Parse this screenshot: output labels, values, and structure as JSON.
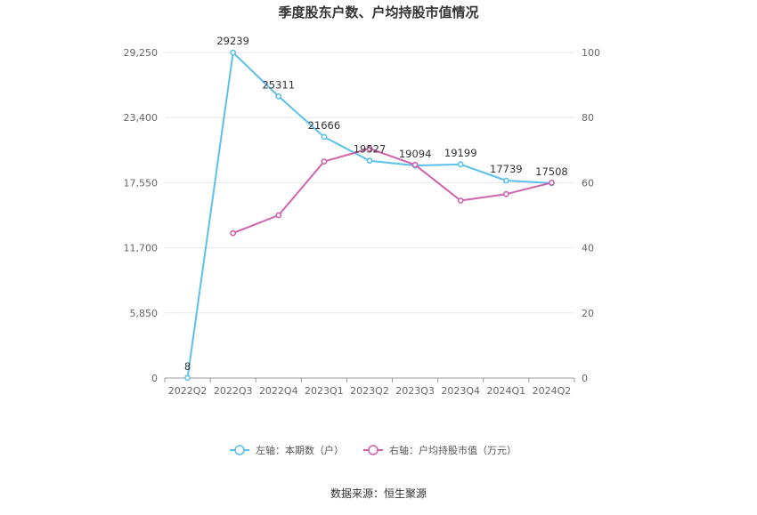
{
  "source_text": "数据来源：恒生聚源",
  "chart_data": {
    "type": "line",
    "title": "季度股东户数、户均持股市值情况",
    "categories": [
      "2022Q2",
      "2022Q3",
      "2022Q4",
      "2023Q1",
      "2023Q2",
      "2023Q3",
      "2023Q4",
      "2024Q1",
      "2024Q2"
    ],
    "y_left": {
      "ticks": [
        0,
        5850,
        11700,
        17550,
        23400,
        29250
      ],
      "tick_labels": [
        "0",
        "5,850",
        "11,700",
        "17,550",
        "23,400",
        "29,250"
      ],
      "ylim": [
        0,
        29250
      ]
    },
    "y_right": {
      "ticks": [
        0,
        20,
        40,
        60,
        80,
        100
      ],
      "tick_labels": [
        "0",
        "20",
        "40",
        "60",
        "80",
        "100"
      ],
      "ylim": [
        0,
        100
      ]
    },
    "grid": true,
    "legend_position": "bottom",
    "series": [
      {
        "name": "左轴：本期数（户）",
        "axis": "left",
        "color": "#5bc0eb",
        "values": [
          8,
          29239,
          25311,
          21666,
          19527,
          19094,
          19199,
          17739,
          17508
        ],
        "data_labels": [
          "8",
          "29239",
          "25311",
          "21666",
          "19527",
          "19094",
          "19199",
          "17739",
          "17508"
        ]
      },
      {
        "name": "右轴：户均持股市值（万元）",
        "axis": "right",
        "color": "#d063ab",
        "values": [
          null,
          44.5,
          50.0,
          66.5,
          70.5,
          65.5,
          54.5,
          56.5,
          60.0
        ]
      }
    ]
  }
}
